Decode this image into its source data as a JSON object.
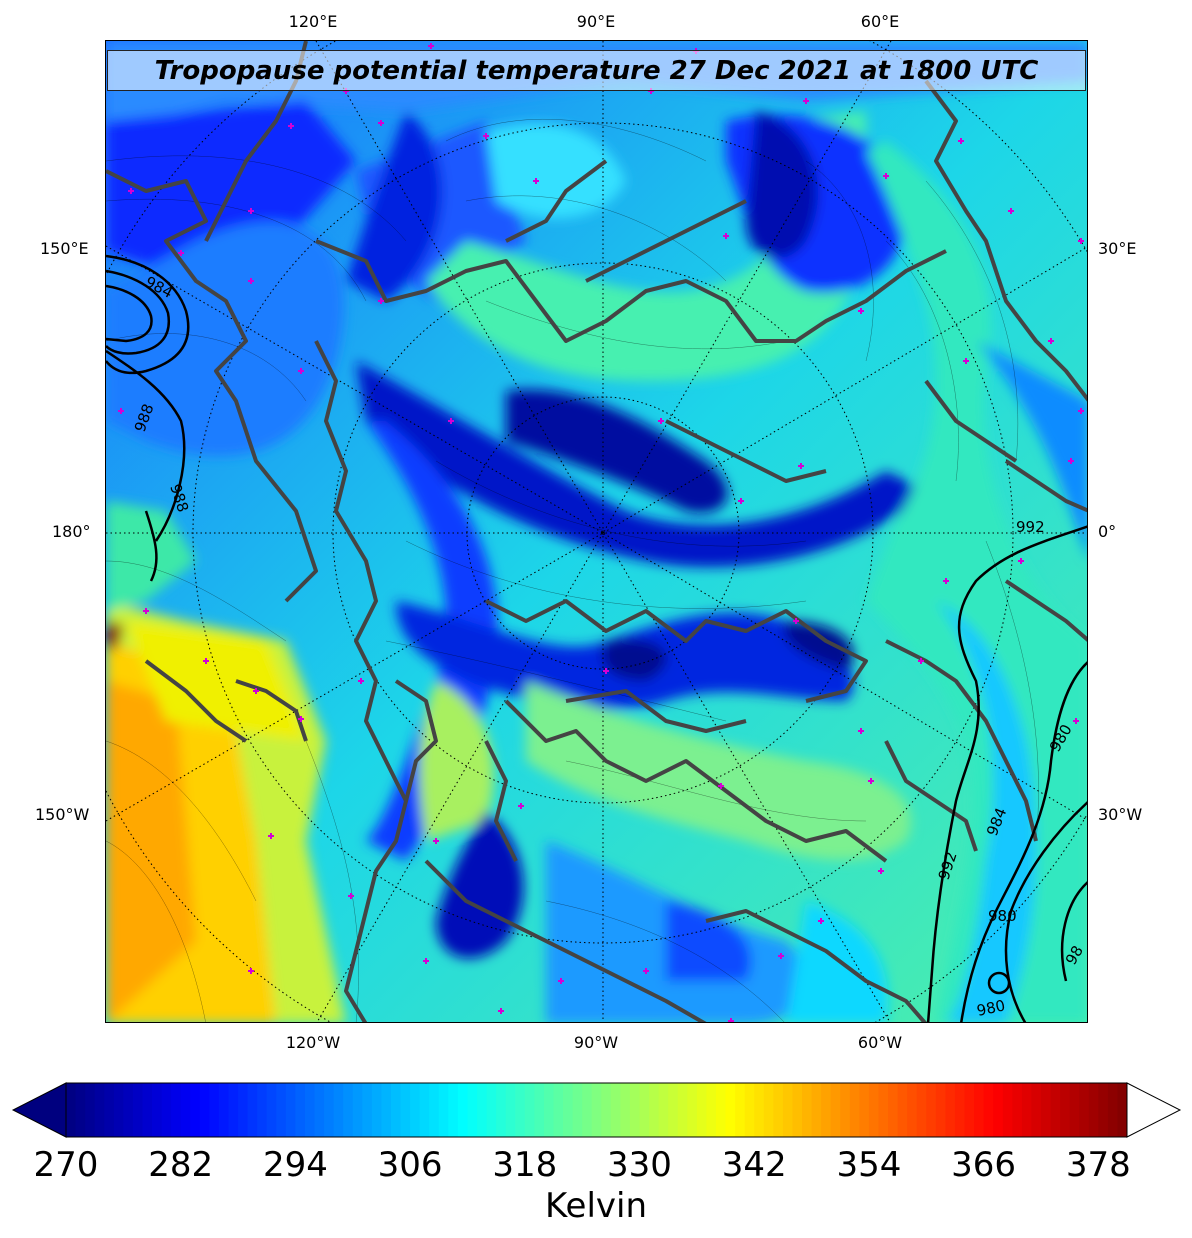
{
  "title": "Tropopause potential temperature 27 Dec 2021 at 1800 UTC",
  "longitude_labels": {
    "top": [
      "120°E",
      "90°E",
      "60°E"
    ],
    "bottom": [
      "120°W",
      "90°W",
      "60°W"
    ],
    "left": [
      "150°E",
      "180°",
      "150°W"
    ],
    "right": [
      "30°E",
      "0°",
      "30°W"
    ]
  },
  "pressure_contours": {
    "labels": [
      "984",
      "988",
      "988",
      "992",
      "980",
      "984",
      "992",
      "980",
      "980",
      "98"
    ],
    "color": "#000000"
  },
  "colorbar": {
    "label": "Kelvin",
    "min": 270,
    "max": 381,
    "ticks": [
      "270",
      "282",
      "294",
      "306",
      "318",
      "330",
      "342",
      "354",
      "366",
      "378"
    ],
    "extend_min_color": "#00007f",
    "extend_max_color": "#ffffff",
    "colormap": "jet"
  },
  "colors": {
    "coastline": "#444444",
    "station_marker": "#d400d4",
    "graticule": "#000000"
  }
}
